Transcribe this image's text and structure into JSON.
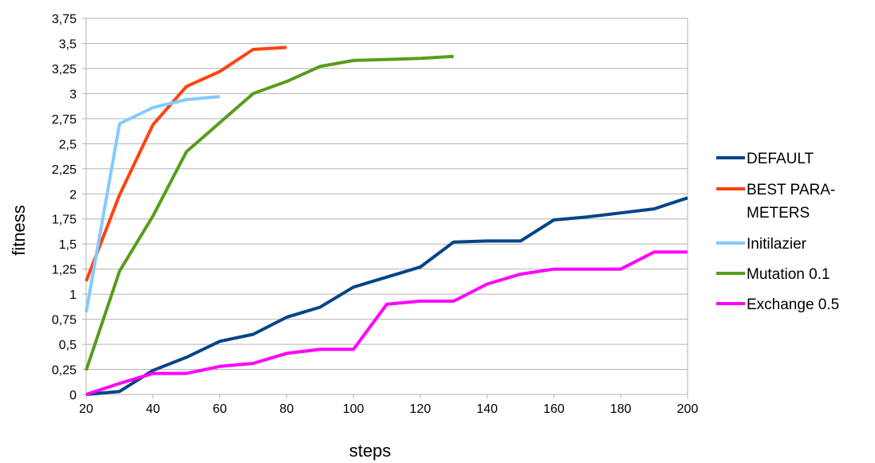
{
  "chart_data": {
    "type": "line",
    "xlabel": "steps",
    "ylabel": "fitness",
    "xlim": [
      20,
      200
    ],
    "ylim": [
      0,
      3.75
    ],
    "x_ticks": [
      "20",
      "40",
      "60",
      "80",
      "100",
      "120",
      "140",
      "160",
      "180",
      "200"
    ],
    "y_ticks": [
      "0",
      "0,25",
      "0,5",
      "0,75",
      "1",
      "1,25",
      "1,5",
      "1,75",
      "2",
      "2,25",
      "2,5",
      "2,75",
      "3",
      "3,25",
      "3,5",
      "3,75"
    ],
    "grid": "horizontal",
    "legend_position": "right",
    "series": [
      {
        "name": "DEFAULT",
        "legend_lines": [
          "DEFAULT"
        ],
        "color": "#004586",
        "x": [
          20,
          30,
          40,
          50,
          60,
          70,
          80,
          90,
          100,
          110,
          120,
          130,
          140,
          150,
          160,
          170,
          180,
          190,
          200
        ],
        "y": [
          0.0,
          0.03,
          0.24,
          0.37,
          0.53,
          0.6,
          0.77,
          0.87,
          1.07,
          1.17,
          1.27,
          1.52,
          1.53,
          1.53,
          1.74,
          1.77,
          1.81,
          1.85,
          1.96
        ]
      },
      {
        "name": "BEST PARAMETERS",
        "legend_lines": [
          "BEST PARA-",
          "METERS"
        ],
        "color": "#ff420e",
        "x": [
          20,
          30,
          40,
          50,
          60,
          70,
          80
        ],
        "y": [
          1.13,
          1.99,
          2.69,
          3.07,
          3.22,
          3.44,
          3.46
        ]
      },
      {
        "name": "Initilazier",
        "legend_lines": [
          "Initilazier"
        ],
        "color": "#83caff",
        "x": [
          20,
          30,
          40,
          50,
          60
        ],
        "y": [
          0.82,
          2.7,
          2.86,
          2.94,
          2.97
        ]
      },
      {
        "name": "Mutation 0.1",
        "legend_lines": [
          "Mutation 0.1"
        ],
        "color": "#579d1c",
        "x": [
          20,
          30,
          40,
          50,
          60,
          70,
          80,
          90,
          100,
          110,
          120,
          130
        ],
        "y": [
          0.24,
          1.23,
          1.78,
          2.42,
          2.71,
          3.0,
          3.12,
          3.27,
          3.33,
          3.34,
          3.35,
          3.37
        ]
      },
      {
        "name": "Exchange 0.5",
        "legend_lines": [
          "Exchange 0.5"
        ],
        "color": "#ff00ff",
        "x": [
          20,
          30,
          40,
          50,
          60,
          70,
          80,
          90,
          100,
          110,
          120,
          130,
          140,
          150,
          160,
          170,
          180,
          190,
          200
        ],
        "y": [
          0.0,
          0.11,
          0.21,
          0.21,
          0.28,
          0.31,
          0.41,
          0.45,
          0.45,
          0.9,
          0.93,
          0.93,
          1.1,
          1.2,
          1.25,
          1.25,
          1.25,
          1.42,
          1.42
        ]
      }
    ]
  }
}
